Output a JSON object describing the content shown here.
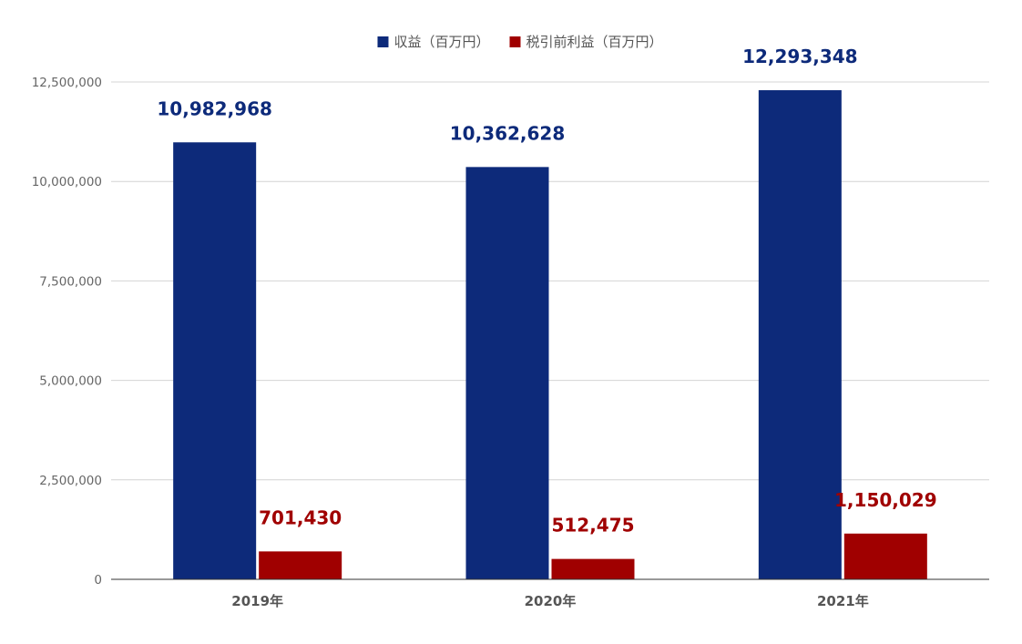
{
  "chart_data": {
    "type": "bar",
    "title": "",
    "xlabel": "",
    "ylabel": "",
    "categories": [
      "2019年",
      "2020年",
      "2021年"
    ],
    "series": [
      {
        "name": "収益（百万円）",
        "color": "#0d2a7a",
        "values": [
          10982968,
          10362628,
          12293348
        ],
        "labels": [
          "10,982,968",
          "10,362,628",
          "12,293,348"
        ]
      },
      {
        "name": "税引前利益（百万円）",
        "color": "#a00000",
        "values": [
          701430,
          512475,
          1150029
        ],
        "labels": [
          "701,430",
          "512,475",
          "1,150,029"
        ]
      }
    ],
    "ylim": [
      0,
      12500000
    ],
    "yticks": [
      0,
      2500000,
      5000000,
      7500000,
      10000000,
      12500000
    ],
    "ytick_labels": [
      "0",
      "2,500,000",
      "5,000,000",
      "7,500,000",
      "10,000,000",
      "12,500,000"
    ],
    "grid": true,
    "legend_position": "top-center"
  }
}
